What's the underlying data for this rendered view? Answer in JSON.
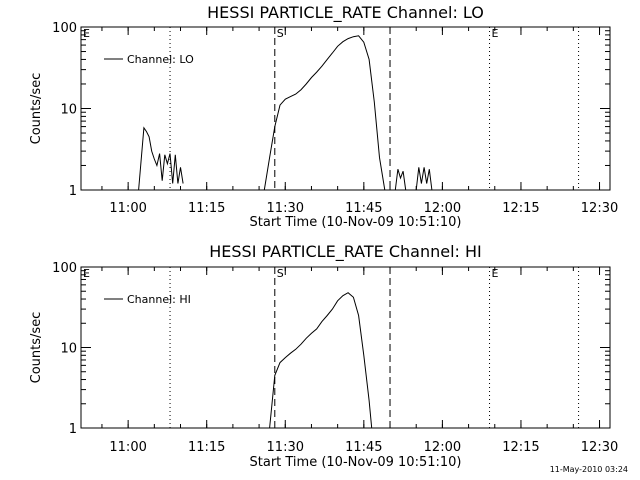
{
  "footer": {
    "timestamp": "11-May-2010 03:24"
  },
  "chart_data": [
    {
      "type": "line",
      "title": "HESSI PARTICLE_RATE Channel: LO",
      "xlabel": "Start Time (10-Nov-09 10:51:10)",
      "ylabel": "Counts/sec",
      "yscale": "log",
      "xlim": [
        "10:51",
        "12:32"
      ],
      "ylim": [
        1,
        100
      ],
      "x_ticks": [
        "11:00",
        "11:15",
        "11:30",
        "11:45",
        "12:00",
        "12:15",
        "12:30"
      ],
      "y_ticks": [
        "1",
        "10",
        "100"
      ],
      "legend": {
        "position": "top-left",
        "entries": [
          "Channel: LO"
        ]
      },
      "markers": [
        {
          "time": "10:51",
          "style": "dotted",
          "label": "E"
        },
        {
          "time": "11:08",
          "style": "dotted",
          "label": ""
        },
        {
          "time": "11:28",
          "style": "dashed",
          "label": "S"
        },
        {
          "time": "11:50",
          "style": "dashed",
          "label": ""
        },
        {
          "time": "12:09",
          "style": "dotted",
          "label": "E"
        },
        {
          "time": "12:26",
          "style": "dotted",
          "label": ""
        }
      ],
      "series": [
        {
          "name": "Channel: LO",
          "segments": [
            {
              "times": [
                "11:02",
                "11:03",
                "11:03:30",
                "11:04",
                "11:04:30",
                "11:05",
                "11:05:30",
                "11:06",
                "11:06:30",
                "11:07",
                "11:07:30",
                "11:08",
                "11:08:30",
                "11:09",
                "11:09:30",
                "11:10",
                "11:10:30"
              ],
              "values": [
                1,
                5.8,
                5.2,
                4.5,
                3.0,
                2.4,
                2.0,
                2.8,
                1.3,
                2.7,
                2.1,
                2.8,
                1.2,
                2.7,
                1.2,
                1.9,
                1.2
              ]
            },
            {
              "times": [
                "11:26",
                "11:27",
                "11:28",
                "11:29",
                "11:30",
                "11:31",
                "11:32",
                "11:33",
                "11:34",
                "11:35",
                "11:36",
                "11:37",
                "11:38",
                "11:39",
                "11:40",
                "11:41",
                "11:42",
                "11:43",
                "11:44",
                "11:45",
                "11:46",
                "11:47",
                "11:48",
                "11:49"
              ],
              "values": [
                1,
                2.5,
                6,
                11,
                13,
                14,
                15,
                17,
                20,
                24,
                28,
                33,
                40,
                48,
                58,
                66,
                72,
                76,
                78,
                65,
                40,
                12,
                2.5,
                1
              ]
            },
            {
              "times": [
                "11:51",
                "11:51:30",
                "11:52",
                "11:52:30",
                "11:53"
              ],
              "values": [
                1,
                1.8,
                1.4,
                1.7,
                1
              ]
            },
            {
              "times": [
                "11:55",
                "11:55:30",
                "11:56",
                "11:56:30",
                "11:57",
                "11:57:30",
                "11:58"
              ],
              "values": [
                1,
                1.9,
                1.2,
                1.9,
                1.2,
                1.8,
                1
              ]
            }
          ]
        }
      ]
    },
    {
      "type": "line",
      "title": "HESSI PARTICLE_RATE Channel: HI",
      "xlabel": "Start Time (10-Nov-09 10:51:10)",
      "ylabel": "Counts/sec",
      "yscale": "log",
      "xlim": [
        "10:51",
        "12:32"
      ],
      "ylim": [
        1,
        100
      ],
      "x_ticks": [
        "11:00",
        "11:15",
        "11:30",
        "11:45",
        "12:00",
        "12:15",
        "12:30"
      ],
      "y_ticks": [
        "1",
        "10",
        "100"
      ],
      "legend": {
        "position": "top-left",
        "entries": [
          "Channel: HI"
        ]
      },
      "markers": [
        {
          "time": "10:51",
          "style": "dotted",
          "label": "E"
        },
        {
          "time": "11:08",
          "style": "dotted",
          "label": ""
        },
        {
          "time": "11:28",
          "style": "dashed",
          "label": "S"
        },
        {
          "time": "11:50",
          "style": "dashed",
          "label": ""
        },
        {
          "time": "12:09",
          "style": "dotted",
          "label": "E"
        },
        {
          "time": "12:26",
          "style": "dotted",
          "label": ""
        }
      ],
      "series": [
        {
          "name": "Channel: HI",
          "segments": [
            {
              "times": [
                "11:27",
                "11:28",
                "11:29",
                "11:30",
                "11:31",
                "11:32",
                "11:33",
                "11:34",
                "11:35",
                "11:36",
                "11:37",
                "11:38",
                "11:39",
                "11:40",
                "11:41",
                "11:42",
                "11:43",
                "11:44",
                "11:45",
                "11:46",
                "11:46:30"
              ],
              "values": [
                1,
                4.5,
                6.5,
                7.5,
                8.5,
                9.5,
                11,
                13,
                15,
                17,
                21,
                25,
                30,
                38,
                44,
                48,
                42,
                25,
                8,
                2.2,
                1
              ]
            }
          ]
        }
      ]
    }
  ]
}
